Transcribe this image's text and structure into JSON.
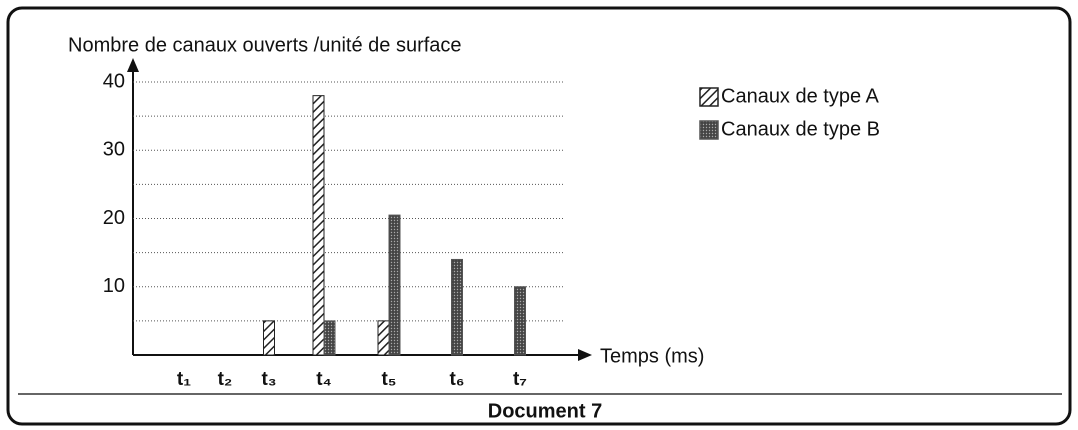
{
  "chart_data": {
    "type": "bar",
    "title": "Nombre de canaux ouverts /unité de surface",
    "x_label": "Temps (ms)",
    "caption": "Document 7",
    "categories": [
      "t₁",
      "t₂",
      "t₃",
      "t₄",
      "t₅",
      "t₆",
      "t₇"
    ],
    "series": [
      {
        "name": "Canaux de type A",
        "color": "#222222",
        "values": [
          0,
          0,
          5,
          38,
          5,
          0,
          0
        ]
      },
      {
        "name": "Canaux de type B",
        "color": "#555555",
        "values": [
          0,
          0,
          0,
          5,
          20.5,
          14,
          10
        ]
      }
    ],
    "ylim": [
      0,
      42
    ],
    "yticks": [
      10,
      20,
      30,
      40
    ],
    "minor_yticks": [
      5,
      15,
      25,
      35
    ],
    "grid": true,
    "legend": "upper right"
  }
}
